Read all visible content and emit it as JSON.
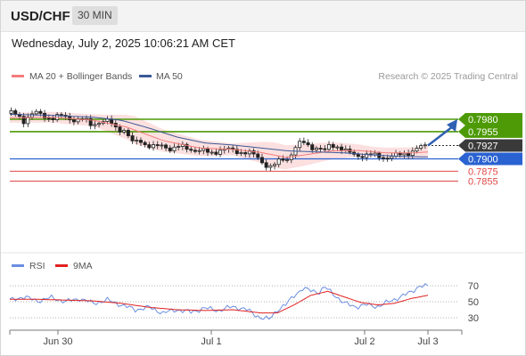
{
  "header": {
    "symbol": "USD/CHF",
    "timeframe": "30 MIN"
  },
  "datetime": "Wednesday, July 2, 2025 10:06:21 AM CET",
  "legend": {
    "ma20": "MA 20 + Bollinger Bands",
    "ma50": "MA 50",
    "credit": "Research © 2025 Trading Central",
    "rsi": "RSI",
    "rsi_ma": "9MA"
  },
  "colors": {
    "candle": "#222222",
    "ma20_band": "#f47c7c",
    "band_fill": "#fbdada",
    "ma50": "#3b5998",
    "resistance": "#4d9a06",
    "support_pivot": "#2a62d1",
    "support": "#e04848",
    "arrow": "#2f5fb3",
    "rsi": "#6a8ee0",
    "rsi_ma": "#e02020"
  },
  "chart_data": [
    {
      "type": "candlestick",
      "panel": "price",
      "x_labels": [
        "Jun 30",
        "Jul 1",
        "Jul 2",
        "Jul 3"
      ],
      "levels": [
        {
          "value": 0.798,
          "label": "0.7980",
          "kind": "resistance"
        },
        {
          "value": 0.7955,
          "label": "0.7955",
          "kind": "resistance"
        },
        {
          "value": 0.7927,
          "label": "0.7927",
          "kind": "last_price"
        },
        {
          "value": 0.79,
          "label": "0.7900",
          "kind": "pivot"
        },
        {
          "value": 0.7875,
          "label": "0.7875",
          "kind": "support"
        },
        {
          "value": 0.7855,
          "label": "0.7855",
          "kind": "support"
        }
      ],
      "close_path": [
        [
          0,
          0.7992
        ],
        [
          6,
          0.7988
        ],
        [
          10,
          0.7978
        ],
        [
          14,
          0.7987
        ],
        [
          18,
          0.7992
        ],
        [
          24,
          0.7988
        ],
        [
          30,
          0.7982
        ],
        [
          38,
          0.7986
        ],
        [
          46,
          0.798
        ],
        [
          54,
          0.7977
        ],
        [
          58,
          0.797
        ],
        [
          64,
          0.7975
        ],
        [
          72,
          0.7974
        ],
        [
          76,
          0.7964
        ],
        [
          82,
          0.7958
        ],
        [
          88,
          0.7932
        ],
        [
          94,
          0.7938
        ],
        [
          98,
          0.7928
        ],
        [
          104,
          0.7922
        ],
        [
          110,
          0.7928
        ],
        [
          116,
          0.792
        ],
        [
          122,
          0.7924
        ],
        [
          128,
          0.7922
        ],
        [
          136,
          0.7916
        ],
        [
          144,
          0.7912
        ],
        [
          150,
          0.7918
        ],
        [
          156,
          0.7918
        ],
        [
          162,
          0.7916
        ],
        [
          170,
          0.7913
        ],
        [
          176,
          0.7906
        ],
        [
          180,
          0.7898
        ],
        [
          184,
          0.7888
        ],
        [
          188,
          0.7882
        ],
        [
          192,
          0.7892
        ],
        [
          196,
          0.79
        ],
        [
          200,
          0.7902
        ],
        [
          204,
          0.792
        ],
        [
          210,
          0.7934
        ],
        [
          214,
          0.7928
        ],
        [
          220,
          0.7922
        ],
        [
          226,
          0.7915
        ],
        [
          230,
          0.793
        ],
        [
          236,
          0.7925
        ],
        [
          242,
          0.7912
        ],
        [
          248,
          0.7908
        ],
        [
          254,
          0.7908
        ],
        [
          260,
          0.7906
        ],
        [
          266,
          0.7905
        ],
        [
          272,
          0.7904
        ],
        [
          278,
          0.7906
        ],
        [
          284,
          0.7912
        ],
        [
          290,
          0.7917
        ],
        [
          296,
          0.7924
        ],
        [
          300,
          0.7927
        ]
      ],
      "ma20_path": [
        [
          0,
          0.7983
        ],
        [
          30,
          0.7984
        ],
        [
          60,
          0.7978
        ],
        [
          84,
          0.7964
        ],
        [
          110,
          0.7937
        ],
        [
          136,
          0.7922
        ],
        [
          160,
          0.7919
        ],
        [
          180,
          0.7913
        ],
        [
          198,
          0.7903
        ],
        [
          212,
          0.7908
        ],
        [
          230,
          0.7916
        ],
        [
          250,
          0.7917
        ],
        [
          270,
          0.7912
        ],
        [
          290,
          0.7912
        ],
        [
          300,
          0.7914
        ]
      ],
      "ma50_path": [
        [
          0,
          0.799
        ],
        [
          30,
          0.7988
        ],
        [
          60,
          0.7984
        ],
        [
          80,
          0.7978
        ],
        [
          100,
          0.7962
        ],
        [
          120,
          0.7944
        ],
        [
          140,
          0.7932
        ],
        [
          160,
          0.7928
        ],
        [
          180,
          0.7922
        ],
        [
          200,
          0.7916
        ],
        [
          220,
          0.7914
        ],
        [
          240,
          0.7912
        ],
        [
          260,
          0.7908
        ],
        [
          280,
          0.7905
        ],
        [
          300,
          0.7904
        ]
      ],
      "band_half_width_path": [
        [
          0,
          0.001
        ],
        [
          60,
          0.0012
        ],
        [
          90,
          0.0028
        ],
        [
          120,
          0.002
        ],
        [
          160,
          0.0012
        ],
        [
          190,
          0.0026
        ],
        [
          220,
          0.002
        ],
        [
          260,
          0.001
        ],
        [
          300,
          0.0012
        ]
      ],
      "arrow_target": 0.798
    },
    {
      "type": "line",
      "panel": "rsi",
      "y_ticks": [
        70,
        50,
        30
      ],
      "series": [
        {
          "name": "RSI",
          "path": [
            [
              0,
              52
            ],
            [
              10,
              56
            ],
            [
              20,
              51
            ],
            [
              30,
              55
            ],
            [
              40,
              50
            ],
            [
              50,
              54
            ],
            [
              60,
              48
            ],
            [
              70,
              52
            ],
            [
              80,
              46
            ],
            [
              90,
              40
            ],
            [
              100,
              43
            ],
            [
              110,
              36
            ],
            [
              120,
              40
            ],
            [
              130,
              37
            ],
            [
              140,
              42
            ],
            [
              150,
              39
            ],
            [
              160,
              44
            ],
            [
              170,
              40
            ],
            [
              180,
              30
            ],
            [
              186,
              28
            ],
            [
              192,
              40
            ],
            [
              198,
              46
            ],
            [
              204,
              58
            ],
            [
              210,
              66
            ],
            [
              216,
              64
            ],
            [
              222,
              62
            ],
            [
              226,
              68
            ],
            [
              232,
              60
            ],
            [
              240,
              48
            ],
            [
              248,
              44
            ],
            [
              256,
              46
            ],
            [
              264,
              44
            ],
            [
              272,
              50
            ],
            [
              280,
              56
            ],
            [
              288,
              62
            ],
            [
              294,
              70
            ],
            [
              300,
              69
            ]
          ]
        },
        {
          "name": "9MA",
          "path": [
            [
              0,
              53
            ],
            [
              20,
              53
            ],
            [
              40,
              52
            ],
            [
              60,
              51
            ],
            [
              80,
              48
            ],
            [
              100,
              43
            ],
            [
              120,
              40
            ],
            [
              140,
              39
            ],
            [
              160,
              40
            ],
            [
              180,
              36
            ],
            [
              192,
              36
            ],
            [
              204,
              46
            ],
            [
              216,
              58
            ],
            [
              228,
              63
            ],
            [
              240,
              56
            ],
            [
              252,
              49
            ],
            [
              264,
              46
            ],
            [
              276,
              48
            ],
            [
              288,
              54
            ],
            [
              300,
              58
            ]
          ]
        }
      ]
    }
  ]
}
